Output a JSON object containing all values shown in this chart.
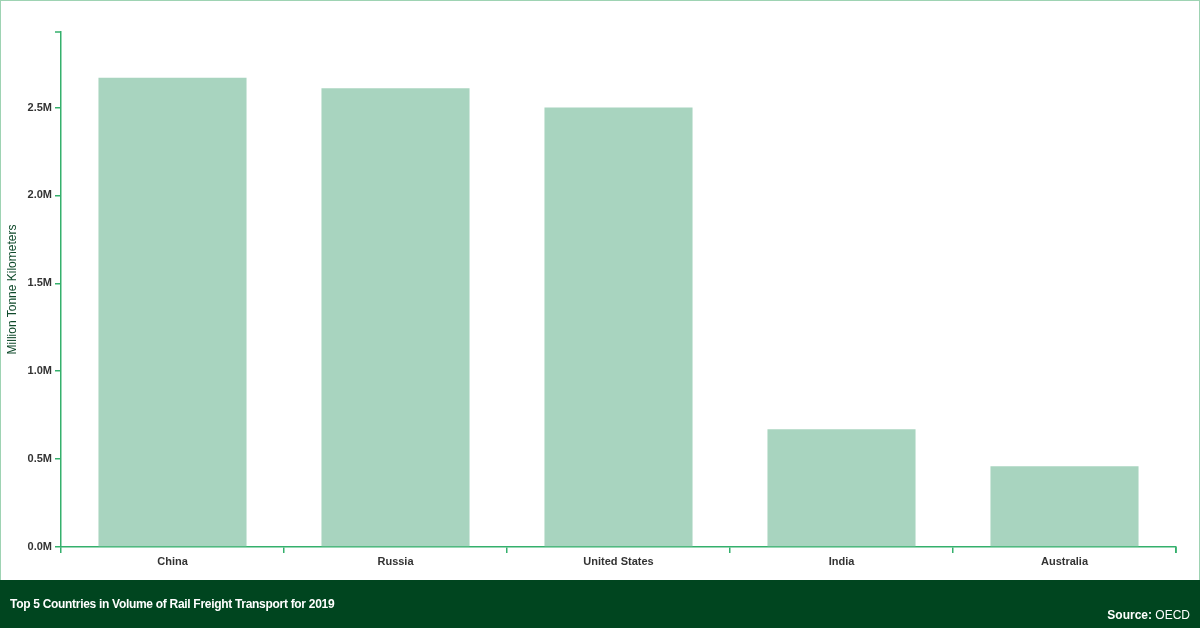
{
  "chart_data": {
    "type": "bar",
    "title": "Top 5 Countries in Volume of Rail Freight Transport for 2019",
    "ylabel": "Million Tonne Kilometers",
    "categories": [
      "China",
      "Russia",
      "United States",
      "India",
      "Australia"
    ],
    "values": [
      2.67,
      2.61,
      2.5,
      0.67,
      0.46
    ],
    "color": "#a8d4bf",
    "ylim": [
      0,
      2.93
    ],
    "yticks": [
      {
        "value": 0,
        "label": "0.0M"
      },
      {
        "value": 0.5,
        "label": "0.5M"
      },
      {
        "value": 1,
        "label": "1.0M"
      },
      {
        "value": 1.5,
        "label": "1.5M"
      },
      {
        "value": 2,
        "label": "2.0M"
      },
      {
        "value": 2.5,
        "label": "2.5M"
      }
    ],
    "annotations": [
      "Source: OECD"
    ]
  }
}
